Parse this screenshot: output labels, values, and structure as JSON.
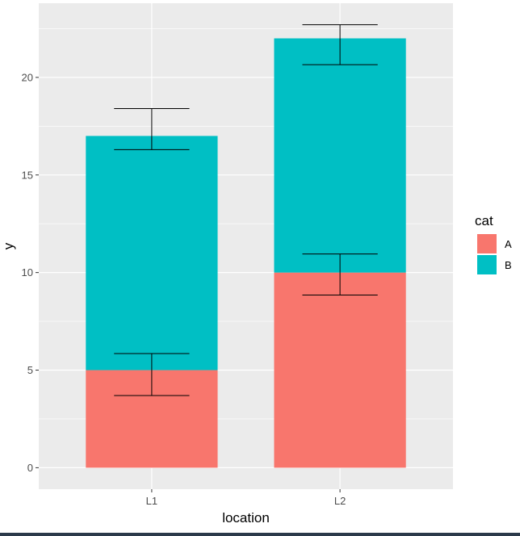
{
  "chart_data": {
    "type": "bar",
    "stacked": true,
    "categories": [
      "L1",
      "L2"
    ],
    "series": [
      {
        "name": "A",
        "color": "#F8766D",
        "values": [
          5,
          10
        ],
        "error_low": [
          3.7,
          8.85
        ],
        "error_high": [
          5.85,
          10.95
        ]
      },
      {
        "name": "B",
        "color": "#00BFC4",
        "values": [
          12,
          12
        ],
        "error_low": [
          16.3,
          20.65
        ],
        "error_high": [
          18.4,
          22.7
        ]
      }
    ],
    "xlabel": "location",
    "ylabel": "y",
    "ylim": [
      -1.1,
      23.8
    ],
    "yticks": [
      0,
      5,
      10,
      15,
      20
    ],
    "legend": {
      "title": "cat",
      "position": "right"
    },
    "grid": true
  }
}
